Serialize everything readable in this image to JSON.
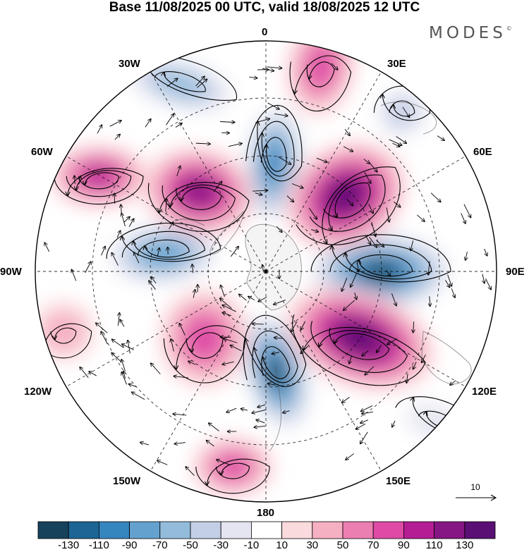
{
  "title": "Base 11/08/2025 00 UTC, valid 18/08/2025 12 UTC",
  "brand": "MODES",
  "brand_mark": "©",
  "longitude_labels": [
    "0",
    "30E",
    "60E",
    "90E",
    "120E",
    "150E",
    "180",
    "150W",
    "120W",
    "90W",
    "60W",
    "30W"
  ],
  "reference_vector": {
    "label": "10"
  },
  "colorbar": {
    "labels": [
      "-130",
      "-110",
      "-90",
      "-70",
      "-50",
      "-30",
      "-10",
      "10",
      "30",
      "50",
      "70",
      "90",
      "110",
      "130"
    ],
    "colors": [
      "#16425b",
      "#1c6594",
      "#3585be",
      "#64a1ce",
      "#93bcdb",
      "#c3cfe6",
      "#e5e5f1",
      "#ffffff",
      "#fbdadd",
      "#f5b0c2",
      "#ec7fb1",
      "#de4aa6",
      "#b41d93",
      "#851683",
      "#5a0f74"
    ]
  },
  "anomalies": [
    {
      "name": "nz-low",
      "v": -130
    },
    {
      "name": "south-atlantic-low",
      "v": -110
    },
    {
      "name": "indian-ocean-low",
      "v": -130
    },
    {
      "name": "west-antarctic-low",
      "v": -90
    },
    {
      "name": "east-high",
      "v": 130
    },
    {
      "name": "australia-high",
      "v": 130
    },
    {
      "name": "west-high",
      "v": 110
    },
    {
      "name": "argentine-basin-high",
      "v": 90
    },
    {
      "name": "pacific-high",
      "v": 70
    },
    {
      "name": "atlantic-high",
      "v": 70
    },
    {
      "name": "far-pacific-high",
      "v": 70
    },
    {
      "name": "southern-ocean-low",
      "v": -70
    },
    {
      "name": "africa-low",
      "v": -50
    },
    {
      "name": "east-pacific-low",
      "v": -30
    },
    {
      "name": "pacific-high-2",
      "v": 30
    }
  ]
}
